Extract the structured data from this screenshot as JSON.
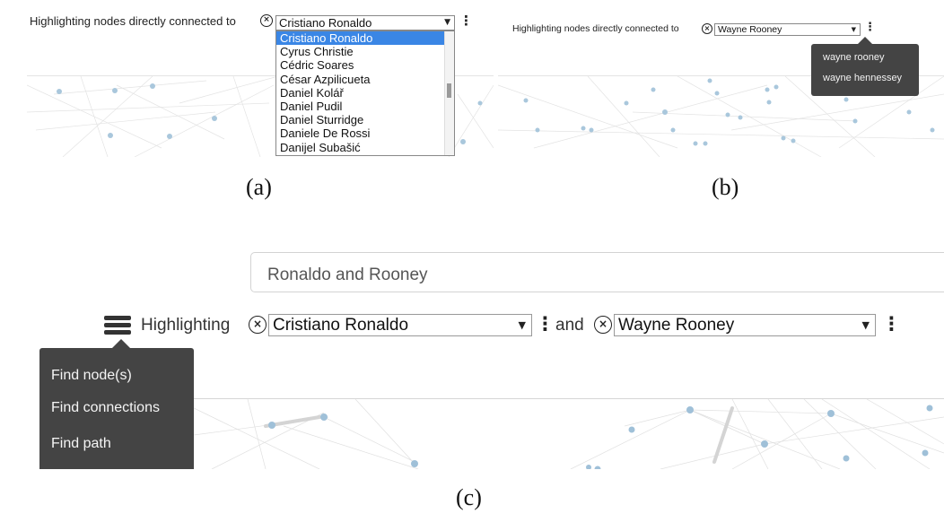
{
  "panel_a": {
    "label": "Highlighting nodes directly connected to",
    "selected": "Cristiano Ronaldo",
    "options": [
      "Cristiano Ronaldo",
      "Cyrus Christie",
      "Cédric Soares",
      "César Azpilicueta",
      "Daniel Kolář",
      "Daniel Pudil",
      "Daniel Sturridge",
      "Daniele De Rossi",
      "Danijel Subašić"
    ],
    "caption": "(a)"
  },
  "panel_b": {
    "label": "Highlighting nodes directly connected to",
    "selected": "Wayne Rooney",
    "suggestions": [
      "wayne rooney",
      "wayne hennessey"
    ],
    "caption": "(b)"
  },
  "panel_c": {
    "search_value": "Ronaldo and Rooney",
    "label": "Highlighting",
    "selected_1": "Cristiano Ronaldo",
    "and_label": "and",
    "selected_2": "Wayne Rooney",
    "menu_items": [
      "Find node(s)",
      "Find connections",
      "Find path"
    ],
    "caption": "(c)"
  },
  "icons": {
    "clear": "circle-x-icon",
    "dropdown": "triangle-down-icon",
    "more": "kebab-icon",
    "menu": "stack-menu-icon"
  },
  "colors": {
    "selection": "#3a86e5",
    "popup": "#444444",
    "node": "#9fc0d8"
  }
}
